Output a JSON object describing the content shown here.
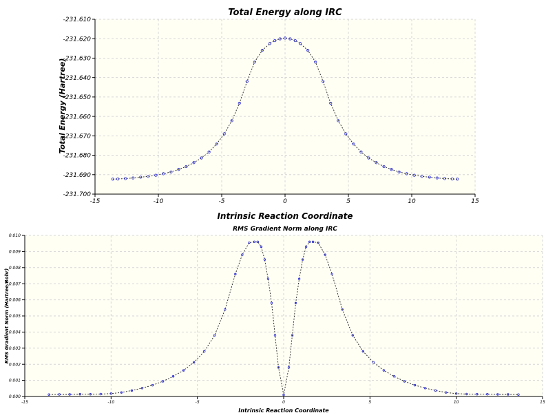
{
  "chart_data": [
    {
      "type": "line",
      "title": "Total Energy along IRC",
      "xlabel": "Intrinsic Reaction Coordinate",
      "ylabel": "Total Energy (Hartree)",
      "xlim": [
        -15,
        15
      ],
      "ylim": [
        -231.7,
        -231.61
      ],
      "xticks": [
        "-15",
        "-10",
        "-5",
        "0",
        "5",
        "10",
        "15"
      ],
      "yticks": [
        "-231.700",
        "-231.690",
        "-231.680",
        "-231.670",
        "-231.660",
        "-231.650",
        "-231.640",
        "-231.630",
        "-231.620",
        "-231.610"
      ],
      "grid": true,
      "series": [
        {
          "x": [
            -13.6,
            -13.2,
            -12.6,
            -12.0,
            -11.4,
            -10.8,
            -10.2,
            -9.6,
            -9.0,
            -8.4,
            -7.8,
            -7.2,
            -6.6,
            -6.0,
            -5.4,
            -4.8,
            -4.2,
            -3.6,
            -3.0,
            -2.4,
            -1.8,
            -1.2,
            -0.8,
            -0.4,
            0.0,
            0.4,
            0.8,
            1.2,
            1.8,
            2.4,
            3.0,
            3.6,
            4.2,
            4.8,
            5.4,
            6.0,
            6.6,
            7.2,
            7.8,
            8.4,
            9.0,
            9.6,
            10.2,
            10.8,
            11.4,
            12.0,
            12.6,
            13.2,
            13.6
          ],
          "values": [
            -231.6923,
            -231.6922,
            -231.692,
            -231.6917,
            -231.6913,
            -231.6909,
            -231.6903,
            -231.6895,
            -231.6886,
            -231.6873,
            -231.6858,
            -231.6838,
            -231.6814,
            -231.6783,
            -231.6742,
            -231.669,
            -231.6622,
            -231.6532,
            -231.642,
            -231.632,
            -231.626,
            -231.6225,
            -231.621,
            -231.6201,
            -231.6197,
            -231.6201,
            -231.621,
            -231.6225,
            -231.626,
            -231.632,
            -231.642,
            -231.6532,
            -231.6622,
            -231.669,
            -231.6742,
            -231.6783,
            -231.6814,
            -231.6838,
            -231.6858,
            -231.6873,
            -231.6886,
            -231.6895,
            -231.6903,
            -231.6909,
            -231.6913,
            -231.6917,
            -231.692,
            -231.6922,
            -231.6923
          ]
        }
      ]
    },
    {
      "type": "line",
      "title": "RMS Gradient Norm along IRC",
      "xlabel": "Intrinsic Reaction Coordinate",
      "ylabel": "RMS Gradient Norm (Hartree/Bohr)",
      "xlim": [
        -15,
        15
      ],
      "ylim": [
        0.0,
        0.01
      ],
      "xticks": [
        "-15",
        "-10",
        "-5",
        "0",
        "5",
        "10",
        "15"
      ],
      "yticks": [
        "0.000",
        "0.001",
        "0.002",
        "0.003",
        "0.004",
        "0.005",
        "0.006",
        "0.007",
        "0.008",
        "0.009",
        "0.010"
      ],
      "grid": true,
      "series": [
        {
          "x": [
            -13.6,
            -13.0,
            -12.4,
            -11.8,
            -11.2,
            -10.6,
            -10.0,
            -9.4,
            -8.8,
            -8.2,
            -7.6,
            -7.0,
            -6.4,
            -5.8,
            -5.2,
            -4.6,
            -4.0,
            -3.4,
            -2.8,
            -2.4,
            -2.0,
            -1.7,
            -1.5,
            -1.3,
            -1.1,
            -0.9,
            -0.7,
            -0.5,
            -0.3,
            0.0,
            0.3,
            0.5,
            0.7,
            0.9,
            1.1,
            1.3,
            1.5,
            1.7,
            2.0,
            2.4,
            2.8,
            3.4,
            4.0,
            4.6,
            5.2,
            5.8,
            6.4,
            7.0,
            7.6,
            8.2,
            8.8,
            9.4,
            10.0,
            10.6,
            11.2,
            11.8,
            12.4,
            13.0,
            13.6
          ],
          "values": [
            0.00012,
            0.00013,
            0.00013,
            0.00014,
            0.00014,
            0.00015,
            0.00018,
            0.00025,
            0.00037,
            0.00052,
            0.0007,
            0.00094,
            0.00125,
            0.00162,
            0.00212,
            0.0028,
            0.0038,
            0.0054,
            0.0076,
            0.0088,
            0.00955,
            0.0096,
            0.0096,
            0.0093,
            0.0085,
            0.0073,
            0.0058,
            0.0038,
            0.0018,
            0.0001,
            0.0018,
            0.0038,
            0.0058,
            0.0073,
            0.0085,
            0.0093,
            0.0096,
            0.0096,
            0.00955,
            0.0088,
            0.0076,
            0.0054,
            0.0038,
            0.0028,
            0.00212,
            0.00162,
            0.00125,
            0.00094,
            0.0007,
            0.00052,
            0.00037,
            0.00025,
            0.00018,
            0.00015,
            0.00014,
            0.00014,
            0.00013,
            0.00013,
            0.00012
          ]
        }
      ]
    }
  ]
}
